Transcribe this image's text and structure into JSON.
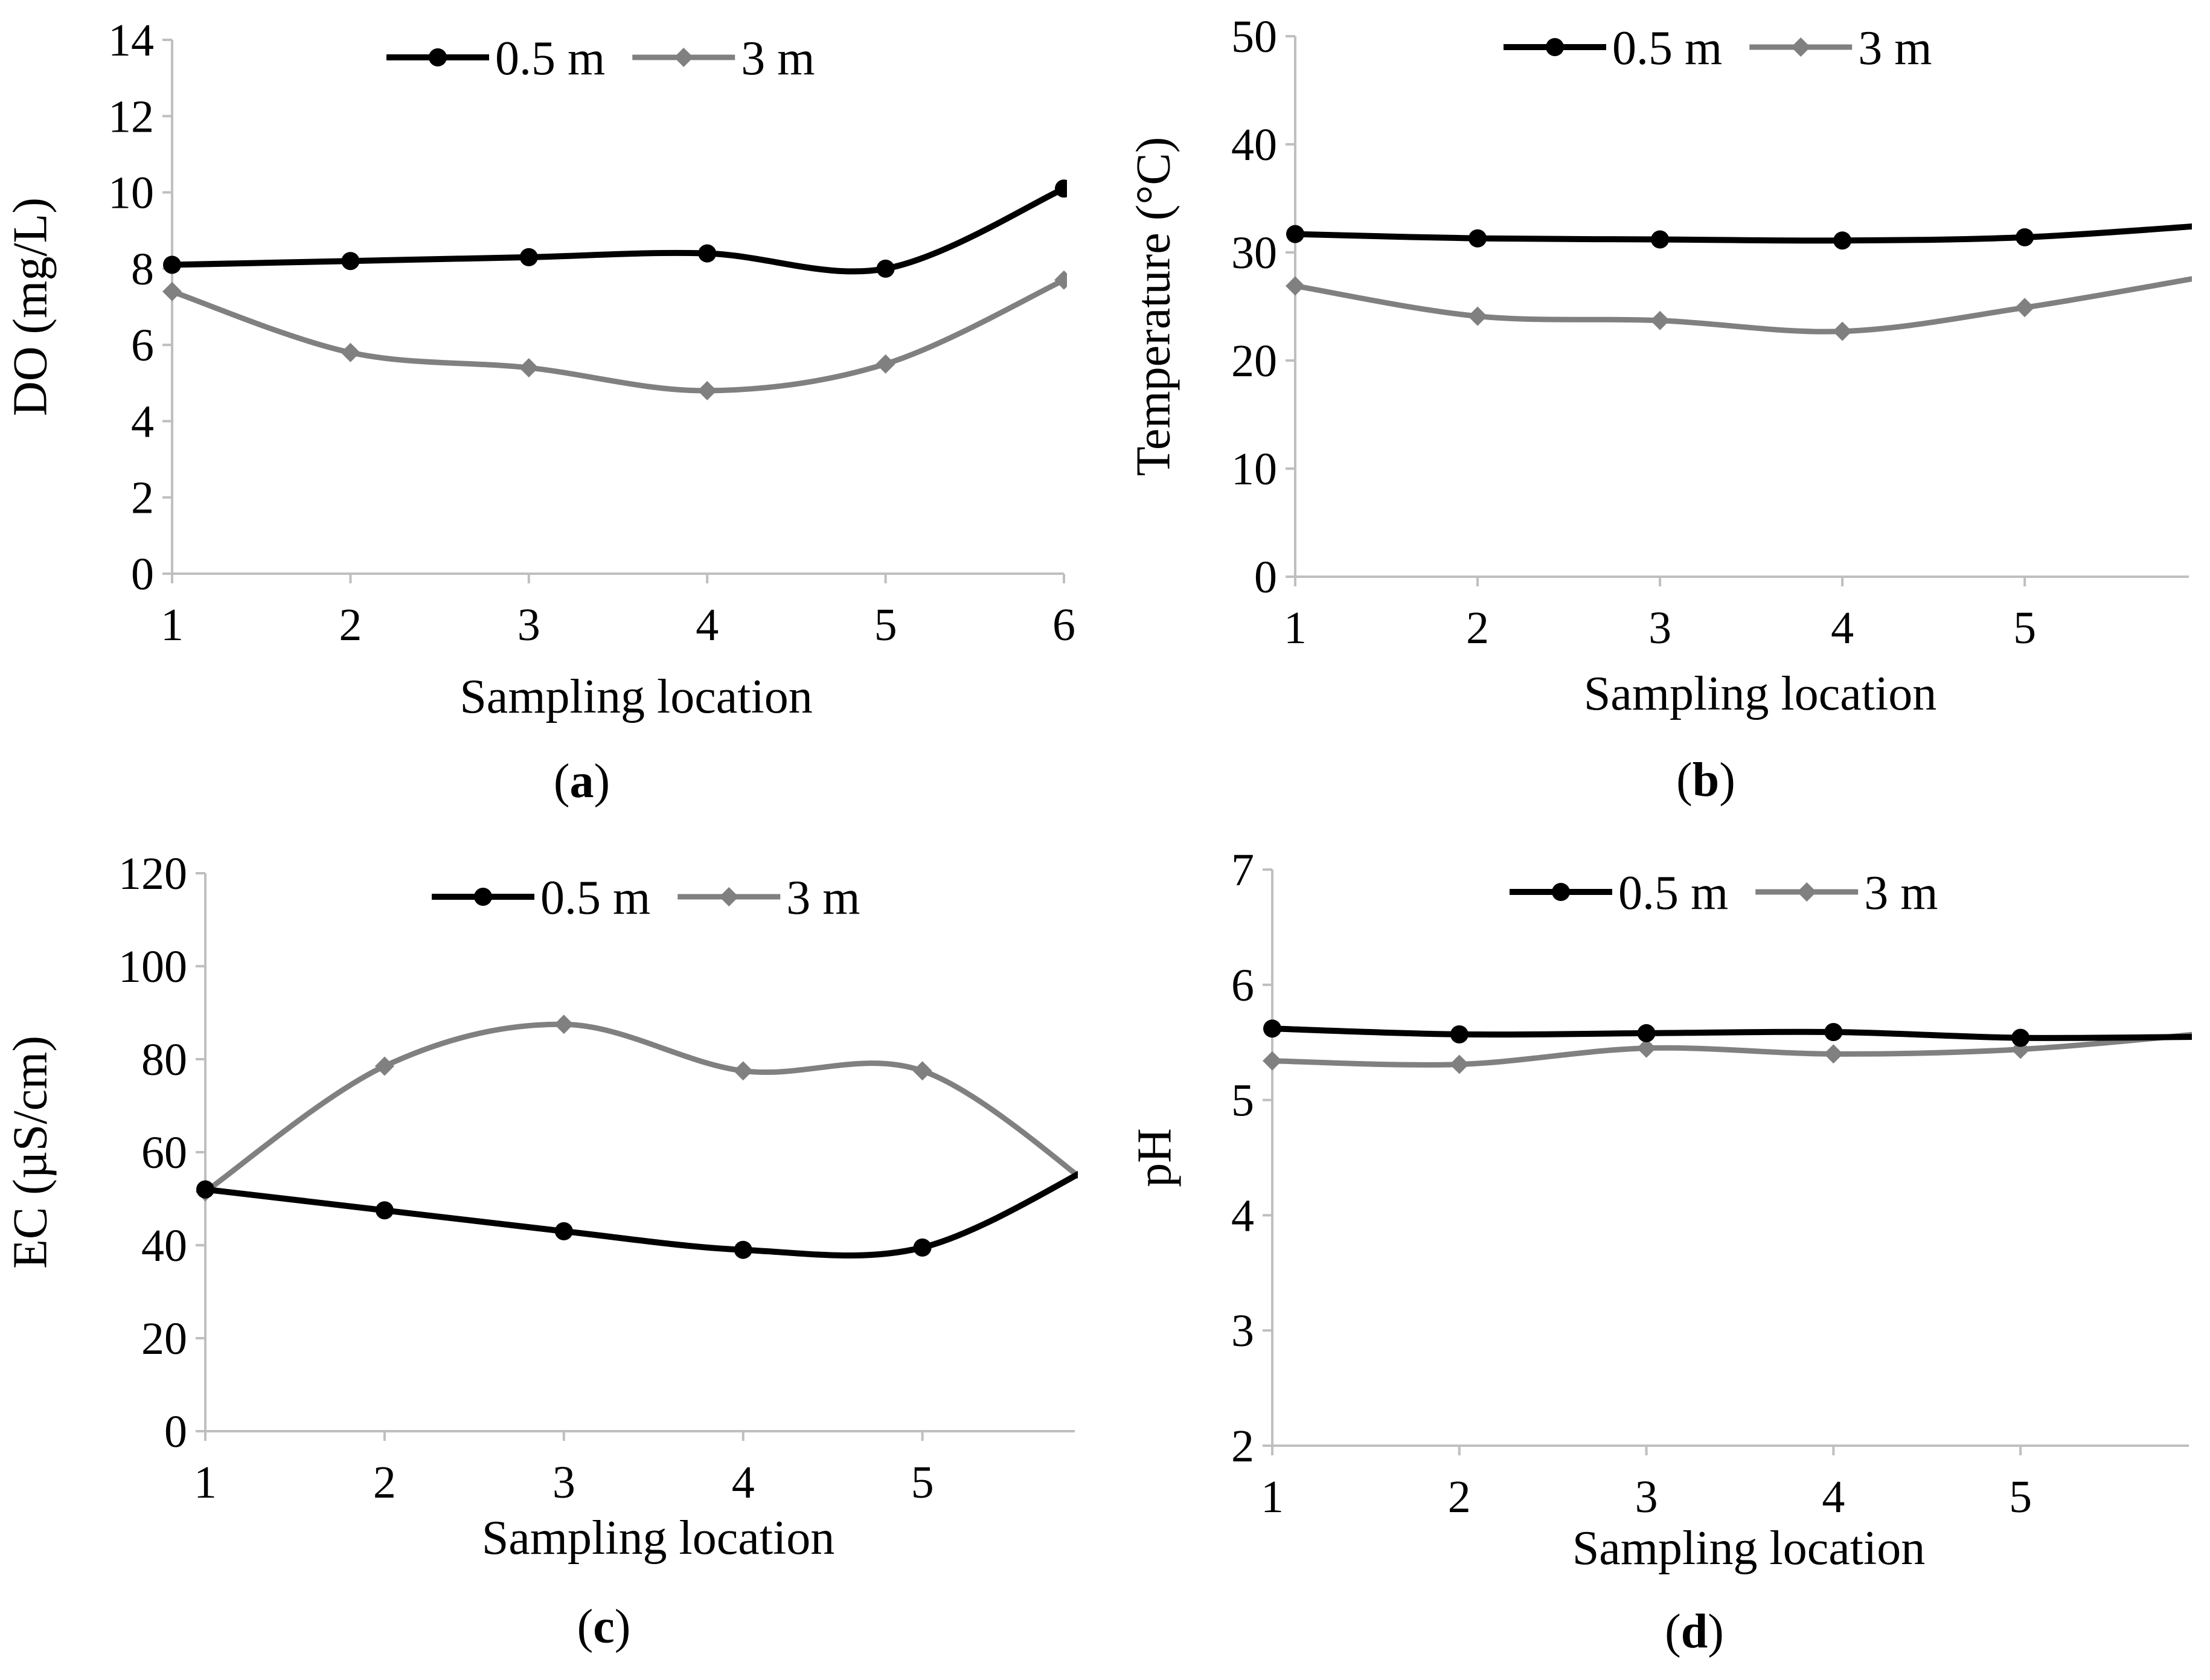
{
  "chart_data": [
    {
      "id": "a",
      "type": "line",
      "panel_label": "a",
      "xlabel": "Sampling location",
      "ylabel": "DO (mg/L)",
      "x": [
        1,
        2,
        3,
        4,
        5,
        6
      ],
      "x_ticks": [
        1,
        2,
        3,
        4,
        5,
        6
      ],
      "xlim": [
        1,
        6
      ],
      "ylim": [
        0,
        14
      ],
      "y_ticks": [
        0,
        2,
        4,
        6,
        8,
        10,
        12,
        14
      ],
      "grid": false,
      "legend_position": "top-center",
      "smooth": true,
      "series": [
        {
          "name": "0.5 m",
          "color": "#000000",
          "marker": "circle",
          "values": [
            8.1,
            8.2,
            8.3,
            8.4,
            8.0,
            10.1
          ]
        },
        {
          "name": "3 m",
          "color": "#808080",
          "marker": "diamond",
          "values": [
            7.4,
            5.8,
            5.4,
            4.8,
            5.5,
            7.7
          ]
        }
      ]
    },
    {
      "id": "b",
      "type": "line",
      "panel_label": "b",
      "xlabel": "Sampling location",
      "ylabel": "Temperature (°C)",
      "x": [
        1,
        2,
        3,
        4,
        5,
        6
      ],
      "x_ticks": [
        1,
        2,
        3,
        4,
        5
      ],
      "xlim": [
        1,
        5.9
      ],
      "ylim": [
        0,
        50
      ],
      "y_ticks": [
        0,
        10,
        20,
        30,
        40,
        50
      ],
      "grid": false,
      "legend_position": "top-center",
      "smooth": true,
      "series": [
        {
          "name": "0.5 m",
          "color": "#000000",
          "marker": "circle",
          "values": [
            31.7,
            31.3,
            31.2,
            31.1,
            31.4,
            32.5
          ]
        },
        {
          "name": "3 m",
          "color": "#808080",
          "marker": "diamond",
          "values": [
            26.9,
            24.1,
            23.7,
            22.7,
            24.9,
            27.8
          ]
        }
      ]
    },
    {
      "id": "c",
      "type": "line",
      "panel_label": "c",
      "xlabel": "Sampling location",
      "ylabel": "EC (µS/cm)",
      "x": [
        1,
        2,
        3,
        4,
        5,
        6
      ],
      "x_ticks": [
        1,
        2,
        3,
        4,
        5
      ],
      "xlim": [
        1,
        5.85
      ],
      "ylim": [
        0,
        120
      ],
      "y_ticks": [
        0,
        20,
        40,
        60,
        80,
        100,
        120
      ],
      "grid": false,
      "legend_position": "top-center",
      "smooth": true,
      "series": [
        {
          "name": "0.5 m",
          "color": "#000000",
          "marker": "circle",
          "values": [
            52,
            47.5,
            43,
            39,
            39.5,
            58
          ]
        },
        {
          "name": "3 m",
          "color": "#808080",
          "marker": "diamond",
          "values": [
            51.5,
            78.5,
            87.5,
            77.5,
            77.5,
            51
          ]
        }
      ]
    },
    {
      "id": "d",
      "type": "line",
      "panel_label": "d",
      "xlabel": "Sampling location",
      "ylabel": "pH",
      "x": [
        1,
        2,
        3,
        4,
        5,
        6
      ],
      "x_ticks": [
        1,
        2,
        3,
        4,
        5
      ],
      "xlim": [
        1,
        5.9
      ],
      "ylim": [
        2,
        7
      ],
      "y_ticks": [
        2,
        3,
        4,
        5,
        6,
        7
      ],
      "grid": false,
      "legend_position": "top-center",
      "smooth": true,
      "series": [
        {
          "name": "0.5 m",
          "color": "#000000",
          "marker": "circle",
          "values": [
            5.62,
            5.57,
            5.58,
            5.59,
            5.54,
            5.55
          ]
        },
        {
          "name": "3 m",
          "color": "#808080",
          "marker": "diamond",
          "values": [
            5.34,
            5.31,
            5.45,
            5.4,
            5.44,
            5.58
          ]
        }
      ]
    }
  ]
}
